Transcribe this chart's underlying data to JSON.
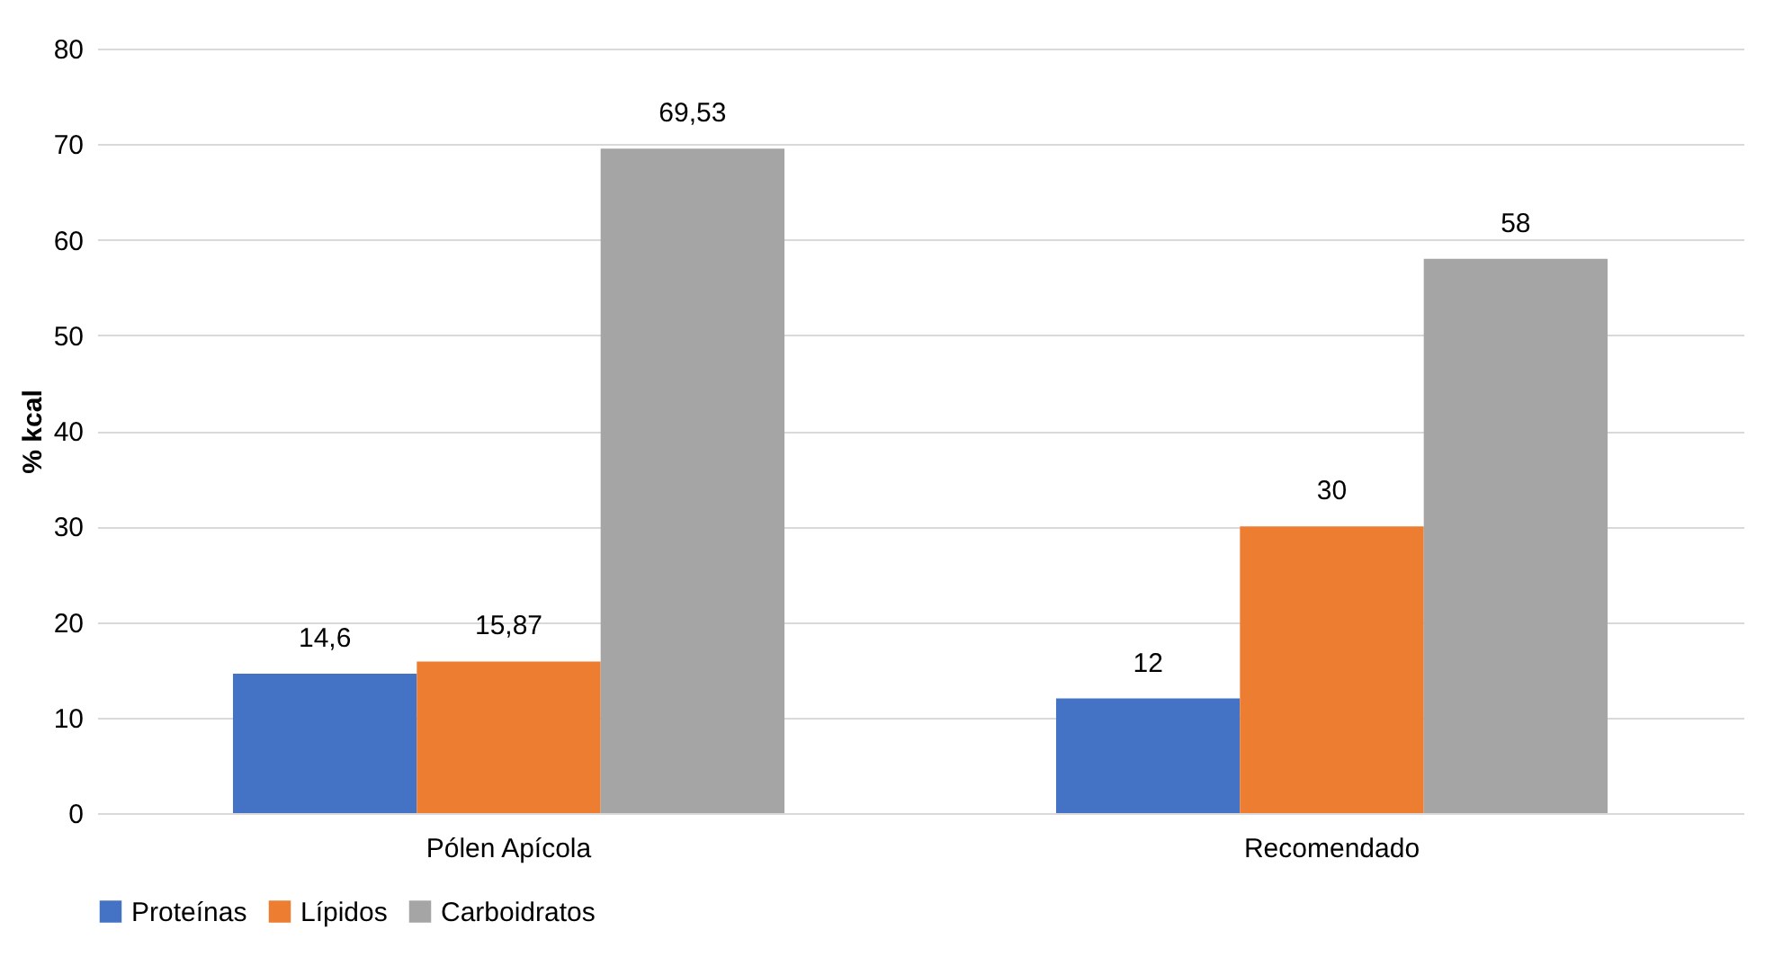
{
  "chart_data": {
    "type": "bar",
    "ylabel": "% kcal",
    "categories": [
      "Pólen Apícola",
      "Recomendado"
    ],
    "series": [
      {
        "name": "Proteínas",
        "color": "#4472c4",
        "values": [
          14.6,
          12
        ],
        "value_labels": [
          "14,6",
          "12"
        ]
      },
      {
        "name": "Lípidos",
        "color": "#ed7d31",
        "values": [
          15.87,
          30
        ],
        "value_labels": [
          "15,87",
          "30"
        ]
      },
      {
        "name": "Carboidratos",
        "color": "#a5a5a5",
        "values": [
          69.53,
          58
        ],
        "value_labels": [
          "69,53",
          "58"
        ]
      }
    ],
    "ylim": [
      0,
      80
    ],
    "yticks": [
      0,
      10,
      20,
      30,
      40,
      50,
      60,
      70,
      80
    ],
    "grid": "y",
    "legend": "bottom"
  }
}
